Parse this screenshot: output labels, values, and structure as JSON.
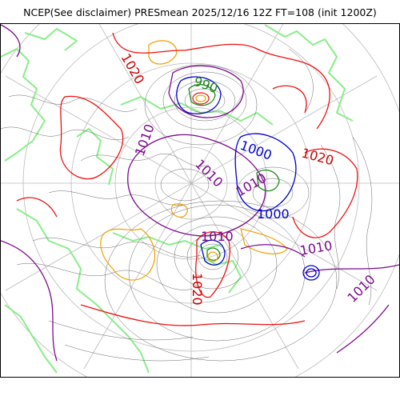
{
  "title": "NCEP(See disclaimer) PRESmean 2025/12/16 12Z FT=108 (init 1200Z)",
  "isobar_labels": [
    {
      "text": "1020",
      "color": "#cc0000"
    },
    {
      "text": "990",
      "color": "#228822"
    },
    {
      "text": "1010",
      "color": "#7a0b8a"
    },
    {
      "text": "1000",
      "color": "#0000cc"
    },
    {
      "text": "1020",
      "color": "#cc0000"
    },
    {
      "text": "1010",
      "color": "#7a0b8a"
    },
    {
      "text": "1000",
      "color": "#0000cc"
    },
    {
      "text": "1010",
      "color": "#7a0b8a"
    },
    {
      "text": "1010",
      "color": "#7a0b8a"
    },
    {
      "text": "1010",
      "color": "#7a0b8a"
    },
    {
      "text": "1020",
      "color": "#cc0000"
    },
    {
      "text": "1010",
      "color": "#7a0b8a"
    }
  ],
  "colors": {
    "isobar_1020": "#ee1111",
    "isobar_1010": "#7a0b8a",
    "isobar_1000": "#0000cc",
    "isobar_990": "#228822",
    "isobar_1030": "#f0a000",
    "isobar_minor": "#555555",
    "coastline": "#88ee88",
    "graticule": "#bbbbbb"
  }
}
